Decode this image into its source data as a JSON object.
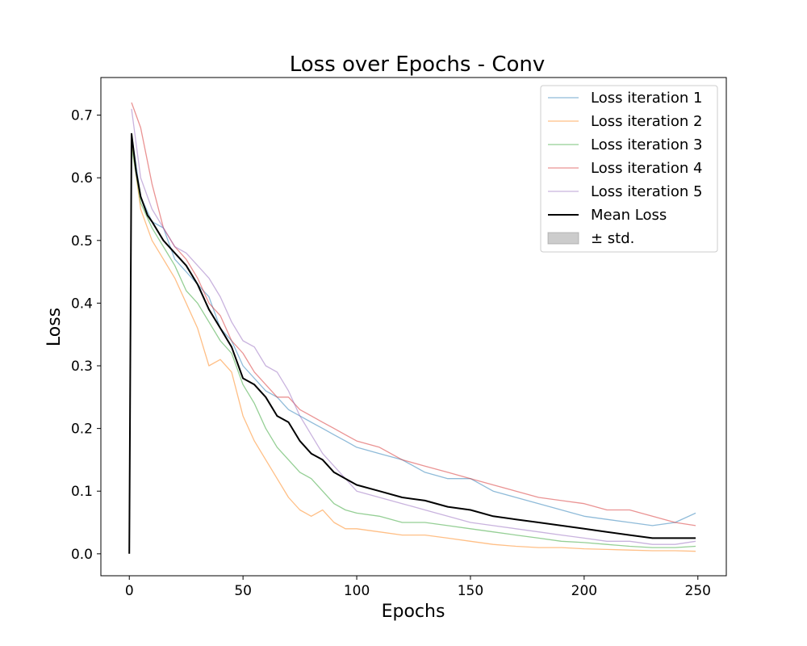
{
  "chart_data": {
    "type": "line",
    "title": "Loss over Epochs - Conv",
    "xlabel": "Epochs",
    "ylabel": "Loss",
    "xlim": [
      -12.5,
      262.5
    ],
    "ylim": [
      -0.035,
      0.76
    ],
    "xticks": [
      0,
      50,
      100,
      150,
      200,
      250
    ],
    "yticks": [
      0.0,
      0.1,
      0.2,
      0.3,
      0.4,
      0.5,
      0.6,
      0.7
    ],
    "xtick_labels": [
      "0",
      "50",
      "100",
      "150",
      "200",
      "250"
    ],
    "ytick_labels": [
      "0.0",
      "0.1",
      "0.2",
      "0.3",
      "0.4",
      "0.5",
      "0.6",
      "0.7"
    ],
    "grid": false,
    "legend_position": "top-right",
    "legend_band_label": "± std.",
    "series": [
      {
        "name": "Loss iteration 1",
        "color": "#1f77b4",
        "opacity": 0.5,
        "x": [
          1,
          5,
          10,
          15,
          20,
          25,
          30,
          35,
          40,
          45,
          50,
          55,
          60,
          65,
          70,
          75,
          80,
          85,
          90,
          95,
          100,
          110,
          120,
          130,
          140,
          150,
          160,
          170,
          180,
          190,
          200,
          210,
          220,
          230,
          240,
          249
        ],
        "y": [
          0.67,
          0.57,
          0.53,
          0.52,
          0.47,
          0.45,
          0.43,
          0.41,
          0.36,
          0.34,
          0.3,
          0.28,
          0.26,
          0.25,
          0.23,
          0.22,
          0.21,
          0.2,
          0.19,
          0.18,
          0.17,
          0.16,
          0.15,
          0.13,
          0.12,
          0.12,
          0.1,
          0.09,
          0.08,
          0.07,
          0.06,
          0.055,
          0.05,
          0.045,
          0.05,
          0.065
        ]
      },
      {
        "name": "Loss iteration 2",
        "color": "#ff7f0e",
        "opacity": 0.5,
        "x": [
          1,
          5,
          10,
          15,
          20,
          25,
          30,
          35,
          40,
          45,
          50,
          55,
          60,
          65,
          70,
          75,
          80,
          85,
          90,
          95,
          100,
          110,
          120,
          130,
          140,
          150,
          160,
          170,
          180,
          190,
          200,
          210,
          220,
          230,
          240,
          249
        ],
        "y": [
          0.66,
          0.55,
          0.5,
          0.47,
          0.44,
          0.4,
          0.36,
          0.3,
          0.31,
          0.29,
          0.22,
          0.18,
          0.15,
          0.12,
          0.09,
          0.07,
          0.06,
          0.07,
          0.05,
          0.04,
          0.04,
          0.035,
          0.03,
          0.03,
          0.025,
          0.02,
          0.015,
          0.012,
          0.01,
          0.01,
          0.008,
          0.007,
          0.006,
          0.005,
          0.005,
          0.004
        ]
      },
      {
        "name": "Loss iteration 3",
        "color": "#2ca02c",
        "opacity": 0.5,
        "x": [
          1,
          5,
          10,
          15,
          20,
          25,
          30,
          35,
          40,
          45,
          50,
          55,
          60,
          65,
          70,
          75,
          80,
          85,
          90,
          95,
          100,
          110,
          120,
          130,
          140,
          150,
          160,
          170,
          180,
          190,
          200,
          210,
          220,
          230,
          240,
          249
        ],
        "y": [
          0.65,
          0.56,
          0.52,
          0.49,
          0.46,
          0.42,
          0.4,
          0.37,
          0.34,
          0.32,
          0.27,
          0.24,
          0.2,
          0.17,
          0.15,
          0.13,
          0.12,
          0.1,
          0.08,
          0.07,
          0.065,
          0.06,
          0.05,
          0.05,
          0.045,
          0.04,
          0.035,
          0.03,
          0.025,
          0.02,
          0.018,
          0.015,
          0.012,
          0.01,
          0.01,
          0.012
        ]
      },
      {
        "name": "Loss iteration 4",
        "color": "#d62728",
        "opacity": 0.5,
        "x": [
          1,
          5,
          10,
          15,
          20,
          25,
          30,
          35,
          40,
          45,
          50,
          55,
          60,
          65,
          70,
          75,
          80,
          85,
          90,
          95,
          100,
          110,
          120,
          130,
          140,
          150,
          160,
          170,
          180,
          190,
          200,
          210,
          220,
          230,
          240,
          249
        ],
        "y": [
          0.72,
          0.68,
          0.59,
          0.52,
          0.49,
          0.47,
          0.44,
          0.4,
          0.38,
          0.34,
          0.32,
          0.29,
          0.27,
          0.25,
          0.25,
          0.23,
          0.22,
          0.21,
          0.2,
          0.19,
          0.18,
          0.17,
          0.15,
          0.14,
          0.13,
          0.12,
          0.11,
          0.1,
          0.09,
          0.085,
          0.08,
          0.07,
          0.07,
          0.06,
          0.05,
          0.045
        ]
      },
      {
        "name": "Loss iteration 5",
        "color": "#9467bd",
        "opacity": 0.5,
        "x": [
          1,
          5,
          10,
          15,
          20,
          25,
          30,
          35,
          40,
          45,
          50,
          55,
          60,
          65,
          70,
          75,
          80,
          85,
          90,
          95,
          100,
          110,
          120,
          130,
          140,
          150,
          160,
          170,
          180,
          190,
          200,
          210,
          220,
          230,
          240,
          249
        ],
        "y": [
          0.71,
          0.6,
          0.55,
          0.52,
          0.49,
          0.48,
          0.46,
          0.44,
          0.41,
          0.37,
          0.34,
          0.33,
          0.3,
          0.29,
          0.26,
          0.22,
          0.19,
          0.16,
          0.14,
          0.12,
          0.1,
          0.09,
          0.08,
          0.07,
          0.06,
          0.05,
          0.045,
          0.04,
          0.035,
          0.03,
          0.025,
          0.02,
          0.02,
          0.015,
          0.015,
          0.02
        ]
      },
      {
        "name": "Mean Loss",
        "color": "#000000",
        "opacity": 1.0,
        "x": [
          0,
          1,
          3,
          5,
          8,
          10,
          15,
          20,
          25,
          30,
          35,
          40,
          45,
          50,
          55,
          60,
          65,
          70,
          75,
          80,
          85,
          90,
          95,
          100,
          110,
          120,
          130,
          140,
          150,
          160,
          170,
          180,
          190,
          200,
          210,
          220,
          230,
          240,
          249
        ],
        "y": [
          0.0,
          0.67,
          0.61,
          0.57,
          0.54,
          0.53,
          0.5,
          0.48,
          0.46,
          0.43,
          0.39,
          0.36,
          0.33,
          0.28,
          0.27,
          0.25,
          0.22,
          0.21,
          0.18,
          0.16,
          0.15,
          0.13,
          0.12,
          0.11,
          0.1,
          0.09,
          0.085,
          0.075,
          0.07,
          0.06,
          0.055,
          0.05,
          0.045,
          0.04,
          0.035,
          0.03,
          0.025,
          0.025,
          0.025
        ]
      }
    ]
  }
}
